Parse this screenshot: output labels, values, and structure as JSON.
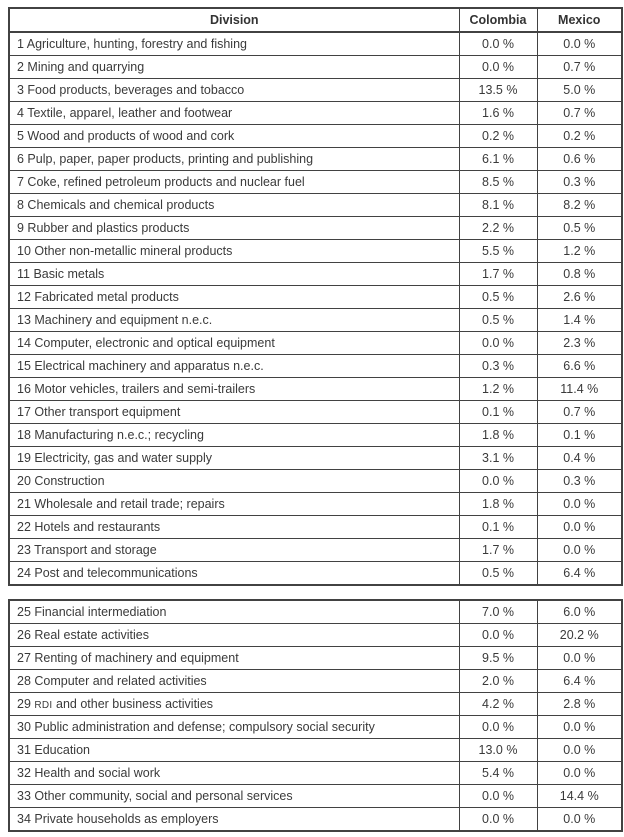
{
  "colors": {
    "border": "#424242",
    "text": "#3a3a3a",
    "background": "#ffffff"
  },
  "table": {
    "header": {
      "division": "Division",
      "colombia": "Colombia",
      "mexico": "Mexico"
    },
    "sections": [
      {
        "name": "divisions-1-24",
        "rows": [
          {
            "division": "1 Agriculture, hunting, forestry and fishing",
            "colombia": "0.0 %",
            "mexico": "0.0 %"
          },
          {
            "division": "2 Mining and quarrying",
            "colombia": "0.0 %",
            "mexico": "0.7 %"
          },
          {
            "division": "3 Food products, beverages and tobacco",
            "colombia": "13.5 %",
            "mexico": "5.0 %"
          },
          {
            "division": "4 Textile, apparel, leather and footwear",
            "colombia": "1.6 %",
            "mexico": "0.7 %"
          },
          {
            "division": "5 Wood and products of wood and cork",
            "colombia": "0.2 %",
            "mexico": "0.2 %"
          },
          {
            "division": "6 Pulp, paper, paper products, printing and publishing",
            "colombia": "6.1 %",
            "mexico": "0.6 %"
          },
          {
            "division": "7 Coke, refined petroleum products and nuclear fuel",
            "colombia": "8.5 %",
            "mexico": "0.3 %"
          },
          {
            "division": "8 Chemicals and chemical products",
            "colombia": "8.1 %",
            "mexico": "8.2 %"
          },
          {
            "division": "9 Rubber and plastics products",
            "colombia": "2.2 %",
            "mexico": "0.5 %"
          },
          {
            "division": "10 Other non-metallic mineral products",
            "colombia": "5.5 %",
            "mexico": "1.2 %"
          },
          {
            "division": "11 Basic metals",
            "colombia": "1.7 %",
            "mexico": "0.8 %"
          },
          {
            "division": "12 Fabricated metal products",
            "colombia": "0.5 %",
            "mexico": "2.6 %"
          },
          {
            "division": "13 Machinery and equipment n.e.c.",
            "colombia": "0.5 %",
            "mexico": "1.4 %"
          },
          {
            "division": "14 Computer, electronic and optical equipment",
            "colombia": "0.0 %",
            "mexico": "2.3 %"
          },
          {
            "division": "15 Electrical machinery and apparatus n.e.c.",
            "colombia": "0.3 %",
            "mexico": "6.6 %"
          },
          {
            "division": "16 Motor vehicles, trailers and semi-trailers",
            "colombia": "1.2 %",
            "mexico": "11.4 %"
          },
          {
            "division": "17 Other transport equipment",
            "colombia": "0.1 %",
            "mexico": "0.7 %"
          },
          {
            "division": "18 Manufacturing n.e.c.; recycling",
            "colombia": "1.8 %",
            "mexico": "0.1 %"
          },
          {
            "division": "19 Electricity, gas and water supply",
            "colombia": "3.1 %",
            "mexico": "0.4 %"
          },
          {
            "division": "20 Construction",
            "colombia": "0.0 %",
            "mexico": "0.3 %"
          },
          {
            "division": "21 Wholesale and retail trade; repairs",
            "colombia": "1.8 %",
            "mexico": "0.0 %"
          },
          {
            "division": "22 Hotels and restaurants",
            "colombia": "0.1 %",
            "mexico": "0.0 %"
          },
          {
            "division": "23 Transport and storage",
            "colombia": "1.7 %",
            "mexico": "0.0 %"
          },
          {
            "division": "24 Post and telecommunications",
            "colombia": "0.5 %",
            "mexico": "6.4 %"
          }
        ]
      },
      {
        "name": "divisions-25-34",
        "rows": [
          {
            "division": "25 Financial intermediation",
            "colombia": "7.0 %",
            "mexico": "6.0 %"
          },
          {
            "division": "26 Real estate activities",
            "colombia": "0.0 %",
            "mexico": "20.2 %"
          },
          {
            "division": "27 Renting of machinery and equipment",
            "colombia": "9.5 %",
            "mexico": "0.0 %"
          },
          {
            "division": "28 Computer and related activities",
            "colombia": "2.0 %",
            "mexico": "6.4 %"
          },
          {
            "division": "29 RDI and other business activities",
            "colombia": "4.2 %",
            "mexico": "2.8 %",
            "smallcaps": "RDI"
          },
          {
            "division": "30 Public administration and defense; compulsory social security",
            "colombia": "0.0 %",
            "mexico": "0.0 %"
          },
          {
            "division": "31 Education",
            "colombia": "13.0 %",
            "mexico": "0.0 %"
          },
          {
            "division": "32 Health and social work",
            "colombia": "5.4 %",
            "mexico": "0.0 %"
          },
          {
            "division": "33 Other community, social and personal services",
            "colombia": "0.0 %",
            "mexico": "14.4 %"
          },
          {
            "division": "34 Private households as employers",
            "colombia": "0.0 %",
            "mexico": "0.0 %"
          }
        ]
      }
    ]
  }
}
